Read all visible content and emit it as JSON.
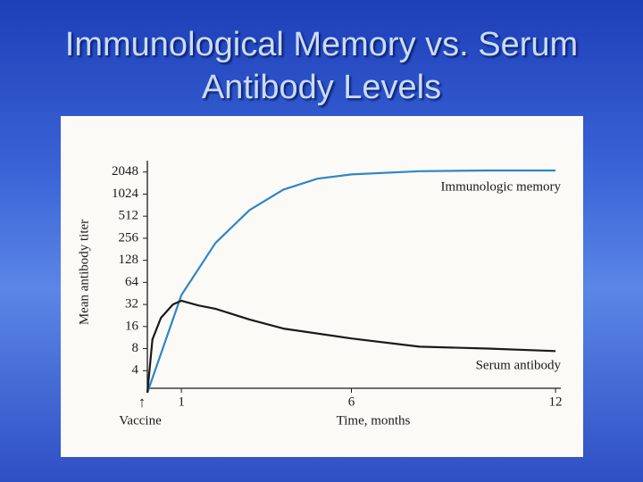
{
  "chart_data": {
    "type": "line",
    "title": "Immunological Memory vs. Serum Antibody Levels",
    "x_label": "Time, months",
    "y_label": "Mean antibody titer",
    "annotation": "Vaccine",
    "annotation_arrow": "↑",
    "log_scale": true,
    "log_base": 2,
    "xlim": [
      0,
      12
    ],
    "xticks": [
      1,
      6,
      12
    ],
    "ylim": [
      2,
      4096
    ],
    "yticks": [
      4,
      8,
      16,
      32,
      64,
      128,
      256,
      512,
      1024,
      2048
    ],
    "series": [
      {
        "name": "Immunologic memory",
        "color": "#2f86c6",
        "x": [
          0,
          1,
          2,
          3,
          4,
          5,
          6,
          8,
          10,
          12
        ],
        "values": [
          2,
          43,
          220,
          620,
          1180,
          1660,
          1900,
          2100,
          2150,
          2150
        ]
      },
      {
        "name": "Serum antibody",
        "color": "#1a1a1a",
        "x": [
          0,
          0.15,
          0.4,
          0.75,
          1,
          1.5,
          2,
          3,
          4,
          6,
          8,
          10,
          12
        ],
        "values": [
          2,
          10.7,
          21,
          32,
          36,
          31,
          28,
          20,
          15,
          11,
          8.5,
          8,
          7.4
        ]
      }
    ]
  }
}
